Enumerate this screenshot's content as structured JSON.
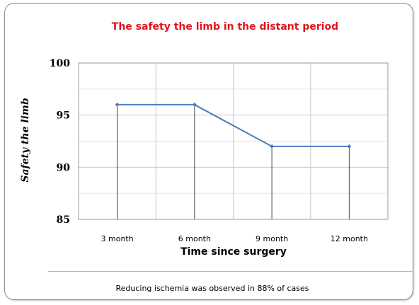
{
  "chart_data": {
    "type": "line",
    "title": "The safety the limb in the distant period",
    "xlabel": "Time since surgery",
    "ylabel": "Safety the limb",
    "categories": [
      "3 month",
      "6 month",
      "9 month",
      "12 month"
    ],
    "series": [
      {
        "values": [
          96,
          96,
          92,
          92
        ]
      }
    ],
    "ylim": [
      85,
      100
    ],
    "yticks": [
      85,
      90,
      95,
      100
    ],
    "grid": true,
    "legend": "none",
    "colors": {
      "series": "#4a7ebb",
      "drop_lines": "#404040",
      "title": "#e0141e"
    }
  },
  "footer": {
    "note": "Reducing ischemia was observed in 88% of cases"
  }
}
